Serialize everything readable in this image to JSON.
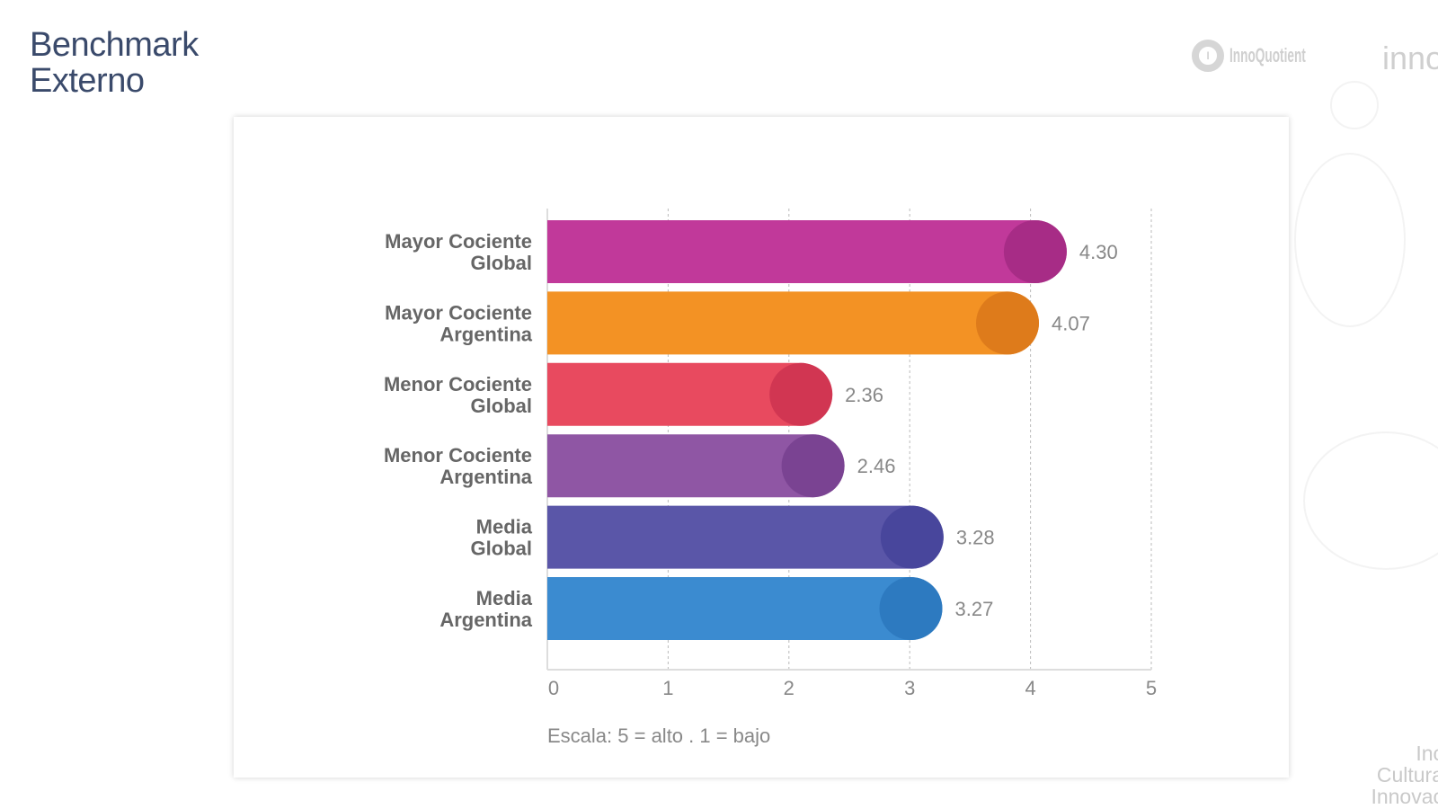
{
  "slide": {
    "title_line1": "Benchmark",
    "title_line2": "Externo",
    "logo_text": "InnoQuotient",
    "logo2_text": "inno",
    "tagline": [
      "Inc",
      "Cultura",
      "Innovac"
    ]
  },
  "chart_data": {
    "type": "bar",
    "orientation": "horizontal",
    "categories": [
      [
        "Mayor Cociente",
        "Global"
      ],
      [
        "Mayor Cociente",
        "Argentina"
      ],
      [
        "Menor Cociente",
        "Global"
      ],
      [
        "Menor Cociente",
        "Argentina"
      ],
      [
        "Media",
        "Global"
      ],
      [
        "Media",
        "Argentina"
      ]
    ],
    "values": [
      4.3,
      4.07,
      2.36,
      2.46,
      3.28,
      3.27
    ],
    "value_labels": [
      "4.30",
      "4.07",
      "2.36",
      "2.46",
      "3.28",
      "3.27"
    ],
    "colors": [
      "#c1399a",
      "#f39224",
      "#e84a5f",
      "#8f56a4",
      "#5a56a8",
      "#3b8bd0"
    ],
    "end_colors": [
      "#a22a82",
      "#d9771a",
      "#cc3250",
      "#773f8f",
      "#45439a",
      "#2c77bd"
    ],
    "xlim": [
      0,
      5
    ],
    "xticks": [
      "0",
      "1",
      "2",
      "3",
      "4",
      "5"
    ],
    "grid": true,
    "caption": "Escala: 5 = alto . 1 = bajo"
  }
}
